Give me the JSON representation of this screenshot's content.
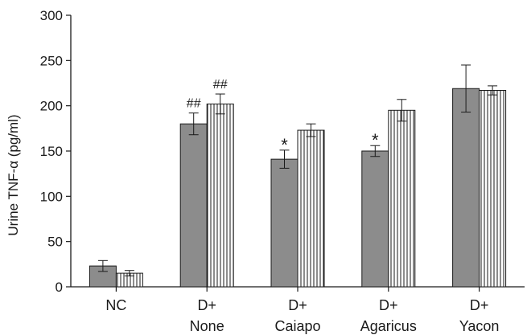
{
  "chart_data": {
    "type": "bar",
    "title": "",
    "xlabel": "",
    "ylabel": "Urine TNF-α (pg/ml)",
    "ylim": [
      0,
      300
    ],
    "yticks": [
      0,
      50,
      100,
      150,
      200,
      250,
      300
    ],
    "grid": false,
    "categories": [
      {
        "line1": "NC",
        "line2": ""
      },
      {
        "line1": "D+",
        "line2": "None"
      },
      {
        "line1": "D+",
        "line2": "Caiapo"
      },
      {
        "line1": "D+",
        "line2": "Agaricus"
      },
      {
        "line1": "D+",
        "line2": "Yacon"
      }
    ],
    "series": [
      {
        "fill": "solid",
        "color": "#8c8c8c",
        "values": [
          23,
          180,
          141,
          150,
          219
        ],
        "errors": [
          6,
          12,
          10,
          6,
          26
        ],
        "annotations": [
          "",
          "##",
          "*",
          "*",
          ""
        ]
      },
      {
        "fill": "vertical-stripes",
        "color": "#ffffff",
        "values": [
          15,
          202,
          173,
          195,
          217
        ],
        "errors": [
          3,
          11,
          7,
          12,
          5
        ],
        "annotations": [
          "",
          "##",
          "",
          "",
          ""
        ]
      }
    ]
  }
}
